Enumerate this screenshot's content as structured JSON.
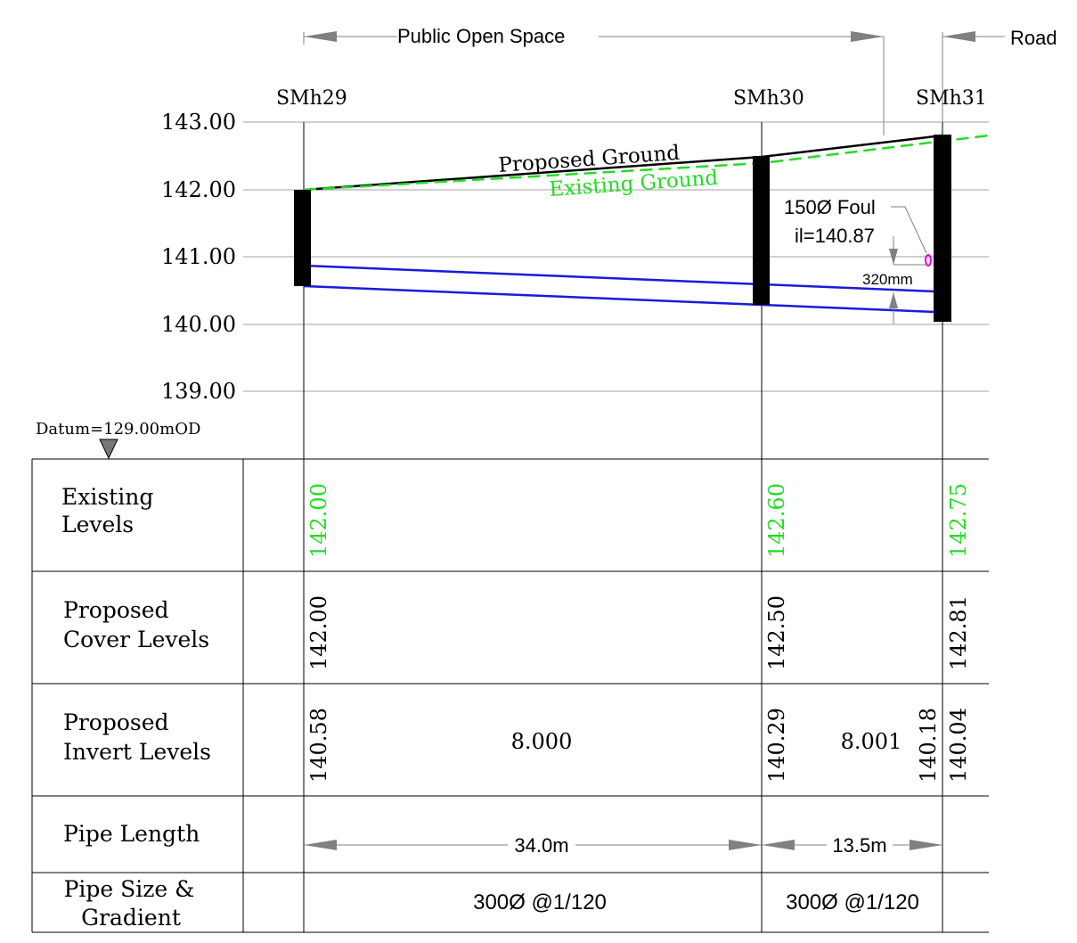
{
  "zones": {
    "public_open_space": "Public Open Space",
    "road": "Road"
  },
  "manholes": [
    {
      "name": "SMh29",
      "chainage_m": 0
    },
    {
      "name": "SMh30",
      "chainage_m": 34.0
    },
    {
      "name": "SMh31",
      "chainage_m": 47.5
    }
  ],
  "chart_data": {
    "type": "line",
    "y_tick_labels": [
      "143.00",
      "142.00",
      "141.00",
      "140.00",
      "139.00"
    ],
    "ylim": [
      139.0,
      143.0
    ],
    "x": [
      0,
      34.0,
      47.5
    ],
    "series": [
      {
        "name": "Proposed Ground",
        "values": [
          142.0,
          142.5,
          142.81
        ],
        "color": "#000000"
      },
      {
        "name": "Existing Ground",
        "values": [
          142.0,
          142.6,
          142.75
        ],
        "color": "#22dd22"
      }
    ],
    "pipe_inverts": [
      140.58,
      140.29,
      140.18,
      140.04
    ]
  },
  "datum": {
    "label": "Datum=",
    "value": "129.00mOD"
  },
  "annotations": {
    "foul_size": "150Ø Foul",
    "foul_il": "il=140.87",
    "clearance": "320mm"
  },
  "table": {
    "row_labels": {
      "existing_line1": "Existing",
      "existing_line2": "Levels",
      "cover_line1": "Proposed",
      "cover_line2": "Cover Levels",
      "invert_line1": "Proposed",
      "invert_line2": "Invert Levels",
      "pipe_length": "Pipe Length",
      "size_line1": "Pipe Size &",
      "size_line2": "Gradient"
    },
    "existing_levels": [
      "142.00",
      "142.60",
      "142.75"
    ],
    "cover_levels": [
      "142.00",
      "142.50",
      "142.81"
    ],
    "invert_levels": [
      "140.58",
      "140.29",
      "140.18",
      "140.04"
    ],
    "pipe_depths": [
      "8.000",
      "8.001"
    ],
    "pipe_lengths": [
      "34.0m",
      "13.5m"
    ],
    "pipe_sizes": [
      "300Ø @1/120",
      "300Ø @1/120"
    ]
  },
  "colors": {
    "existing": "#22dd22",
    "pipe": "#1a1adc",
    "foul": "#e600e6",
    "grid": "#a0a0a0",
    "arrow": "#808080"
  }
}
